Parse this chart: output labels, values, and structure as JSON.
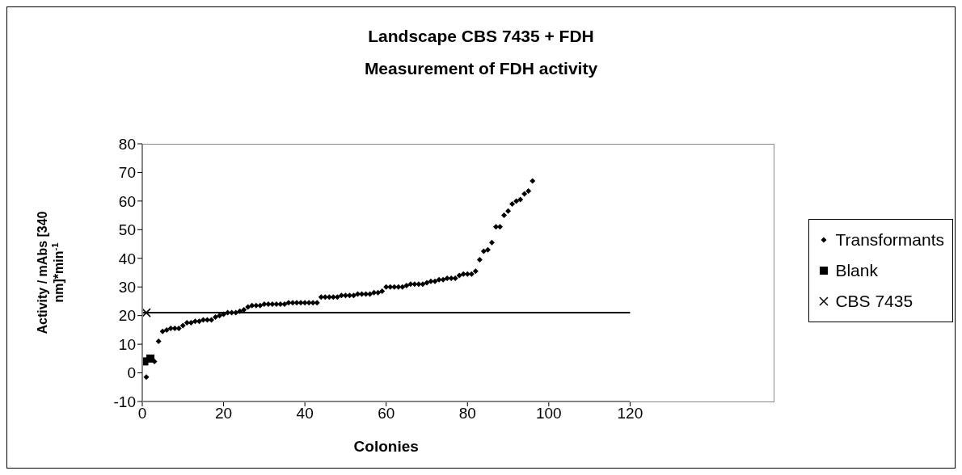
{
  "chart_data": {
    "type": "scatter",
    "title": "Landscape CBS 7435 + FDH",
    "subtitle": "Measurement of FDH activity",
    "xlabel": "Colonies",
    "ylabel": "Activity / mAbs [340 nm]*min$^{-1}$",
    "xlim": [
      0,
      120
    ],
    "xticks": [
      0,
      20,
      40,
      60,
      80,
      100,
      120
    ],
    "ylim": [
      -10,
      80
    ],
    "yticks": [
      -10,
      0,
      10,
      20,
      30,
      40,
      50,
      60,
      70,
      80
    ],
    "grid": false,
    "legend": "right",
    "ref_lines": [
      {
        "axis": "y",
        "value": 21,
        "color": "#000000"
      }
    ],
    "series": [
      {
        "name": "Transformants",
        "color": "#000000",
        "marker": "diamond",
        "x": [
          1,
          3,
          4,
          5,
          6,
          7,
          8,
          9,
          10,
          11,
          12,
          13,
          14,
          15,
          16,
          17,
          18,
          19,
          20,
          21,
          22,
          23,
          24,
          25,
          26,
          27,
          28,
          29,
          30,
          31,
          32,
          33,
          34,
          35,
          36,
          37,
          38,
          39,
          40,
          41,
          42,
          43,
          44,
          45,
          46,
          47,
          48,
          49,
          50,
          51,
          52,
          53,
          54,
          55,
          56,
          57,
          58,
          59,
          60,
          61,
          62,
          63,
          64,
          65,
          66,
          67,
          68,
          69,
          70,
          71,
          72,
          73,
          74,
          75,
          76,
          77,
          78,
          79,
          80,
          81,
          82,
          83,
          84,
          85,
          86,
          87,
          88,
          89,
          90,
          91,
          92,
          93,
          94,
          95,
          96
        ],
        "values": [
          -1.5,
          4,
          11,
          14.5,
          15,
          15.5,
          15.5,
          15.5,
          16.5,
          17.5,
          17.5,
          18,
          18,
          18.5,
          18.5,
          18.5,
          19.5,
          20,
          20.5,
          21,
          21,
          21,
          21.5,
          22,
          23,
          23.5,
          23.5,
          23.5,
          24,
          24,
          24,
          24,
          24,
          24,
          24.5,
          24.5,
          24.5,
          24.5,
          24.5,
          24.5,
          24.5,
          24.5,
          26.5,
          26.5,
          26.5,
          26.5,
          26.5,
          27,
          27,
          27,
          27,
          27.5,
          27.5,
          27.5,
          27.5,
          28,
          28,
          28.5,
          30,
          30,
          30,
          30,
          30,
          30.5,
          31,
          31,
          31,
          31,
          31.5,
          32,
          32,
          32.5,
          32.5,
          33,
          33,
          33,
          34,
          34.5,
          34.5,
          34.5,
          35.5,
          39.5,
          42.5,
          43,
          45.5,
          51,
          51,
          55,
          56.5,
          59,
          60,
          60.5,
          62.5,
          63.5,
          67
        ]
      },
      {
        "name": "Blank",
        "color": "#000000",
        "marker": "square",
        "x": [
          0.5,
          2
        ],
        "values": [
          4,
          5
        ]
      },
      {
        "name": "CBS 7435",
        "color": "#000000",
        "marker": "cross",
        "x": [
          1
        ],
        "values": [
          21
        ]
      }
    ]
  }
}
